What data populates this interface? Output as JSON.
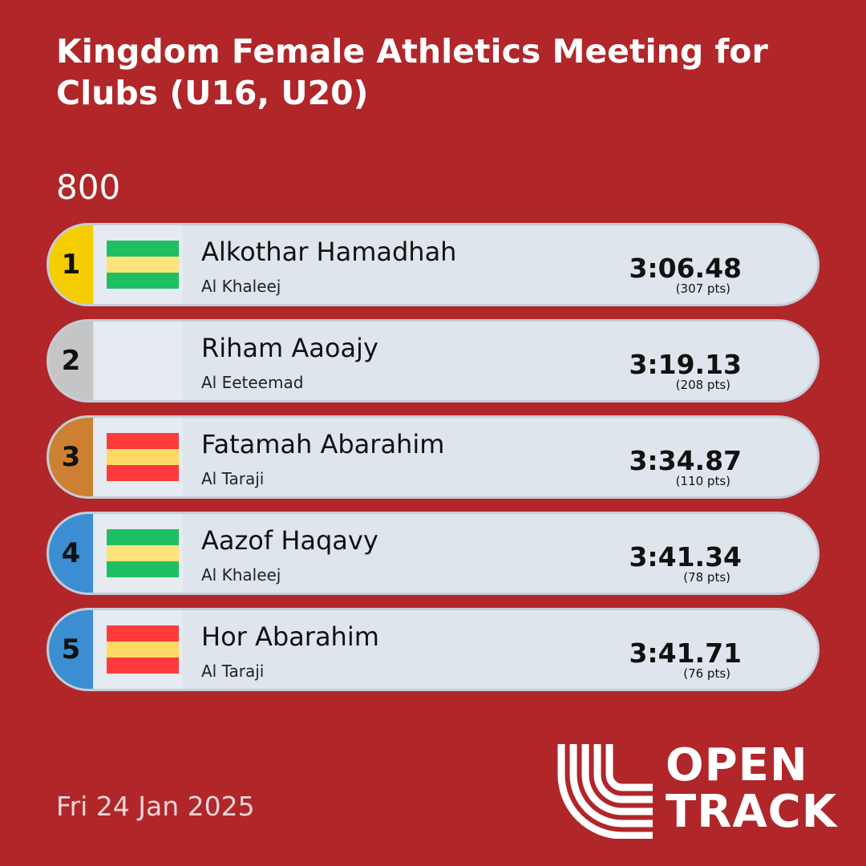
{
  "meeting": {
    "title": "Kingdom Female Athletics Meeting for Clubs (U16, U20)"
  },
  "event": {
    "name": "800"
  },
  "results": [
    {
      "rank": "1",
      "name": "Alkothar Hamadhah",
      "club": "Al Khaleej",
      "time": "3:06.48",
      "points": "(307 pts)",
      "rank_color": "#f5cd00",
      "flag_icon": "green-yellow-green-club-flag-icon",
      "flag_colors": [
        "#1dbf62",
        "#ffe27a",
        "#1dbf62"
      ]
    },
    {
      "rank": "2",
      "name": "Riham Aaoajy",
      "club": "Al Eeteemad",
      "time": "3:19.13",
      "points": "(208 pts)",
      "rank_color": "#c5c5c5",
      "flag_icon": "",
      "flag_colors": []
    },
    {
      "rank": "3",
      "name": "Fatamah Abarahim",
      "club": "Al Taraji",
      "time": "3:34.87",
      "points": "(110 pts)",
      "rank_color": "#cd7f32",
      "flag_icon": "red-yellow-red-club-flag-icon",
      "flag_colors": [
        "#ff3b3b",
        "#ffd966",
        "#ff3b3b"
      ]
    },
    {
      "rank": "4",
      "name": "Aazof Haqavy",
      "club": "Al Khaleej",
      "time": "3:41.34",
      "points": "(78 pts)",
      "rank_color": "#3a8ed1",
      "flag_icon": "green-yellow-green-club-flag-icon",
      "flag_colors": [
        "#1dbf62",
        "#ffe27a",
        "#1dbf62"
      ]
    },
    {
      "rank": "5",
      "name": "Hor Abarahim",
      "club": "Al Taraji",
      "time": "3:41.71",
      "points": "(76 pts)",
      "rank_color": "#3a8ed1",
      "flag_icon": "red-yellow-red-club-flag-icon",
      "flag_colors": [
        "#ff3b3b",
        "#ffd966",
        "#ff3b3b"
      ]
    }
  ],
  "footer": {
    "date": "Fri 24 Jan 2025",
    "logo_line1": "OPEN",
    "logo_line2": "TRACK",
    "logo_icon": "opentrack-arcs-icon"
  },
  "colors": {
    "background": "#b02629",
    "row_background": "#dfe5ec",
    "text": "#111111"
  }
}
